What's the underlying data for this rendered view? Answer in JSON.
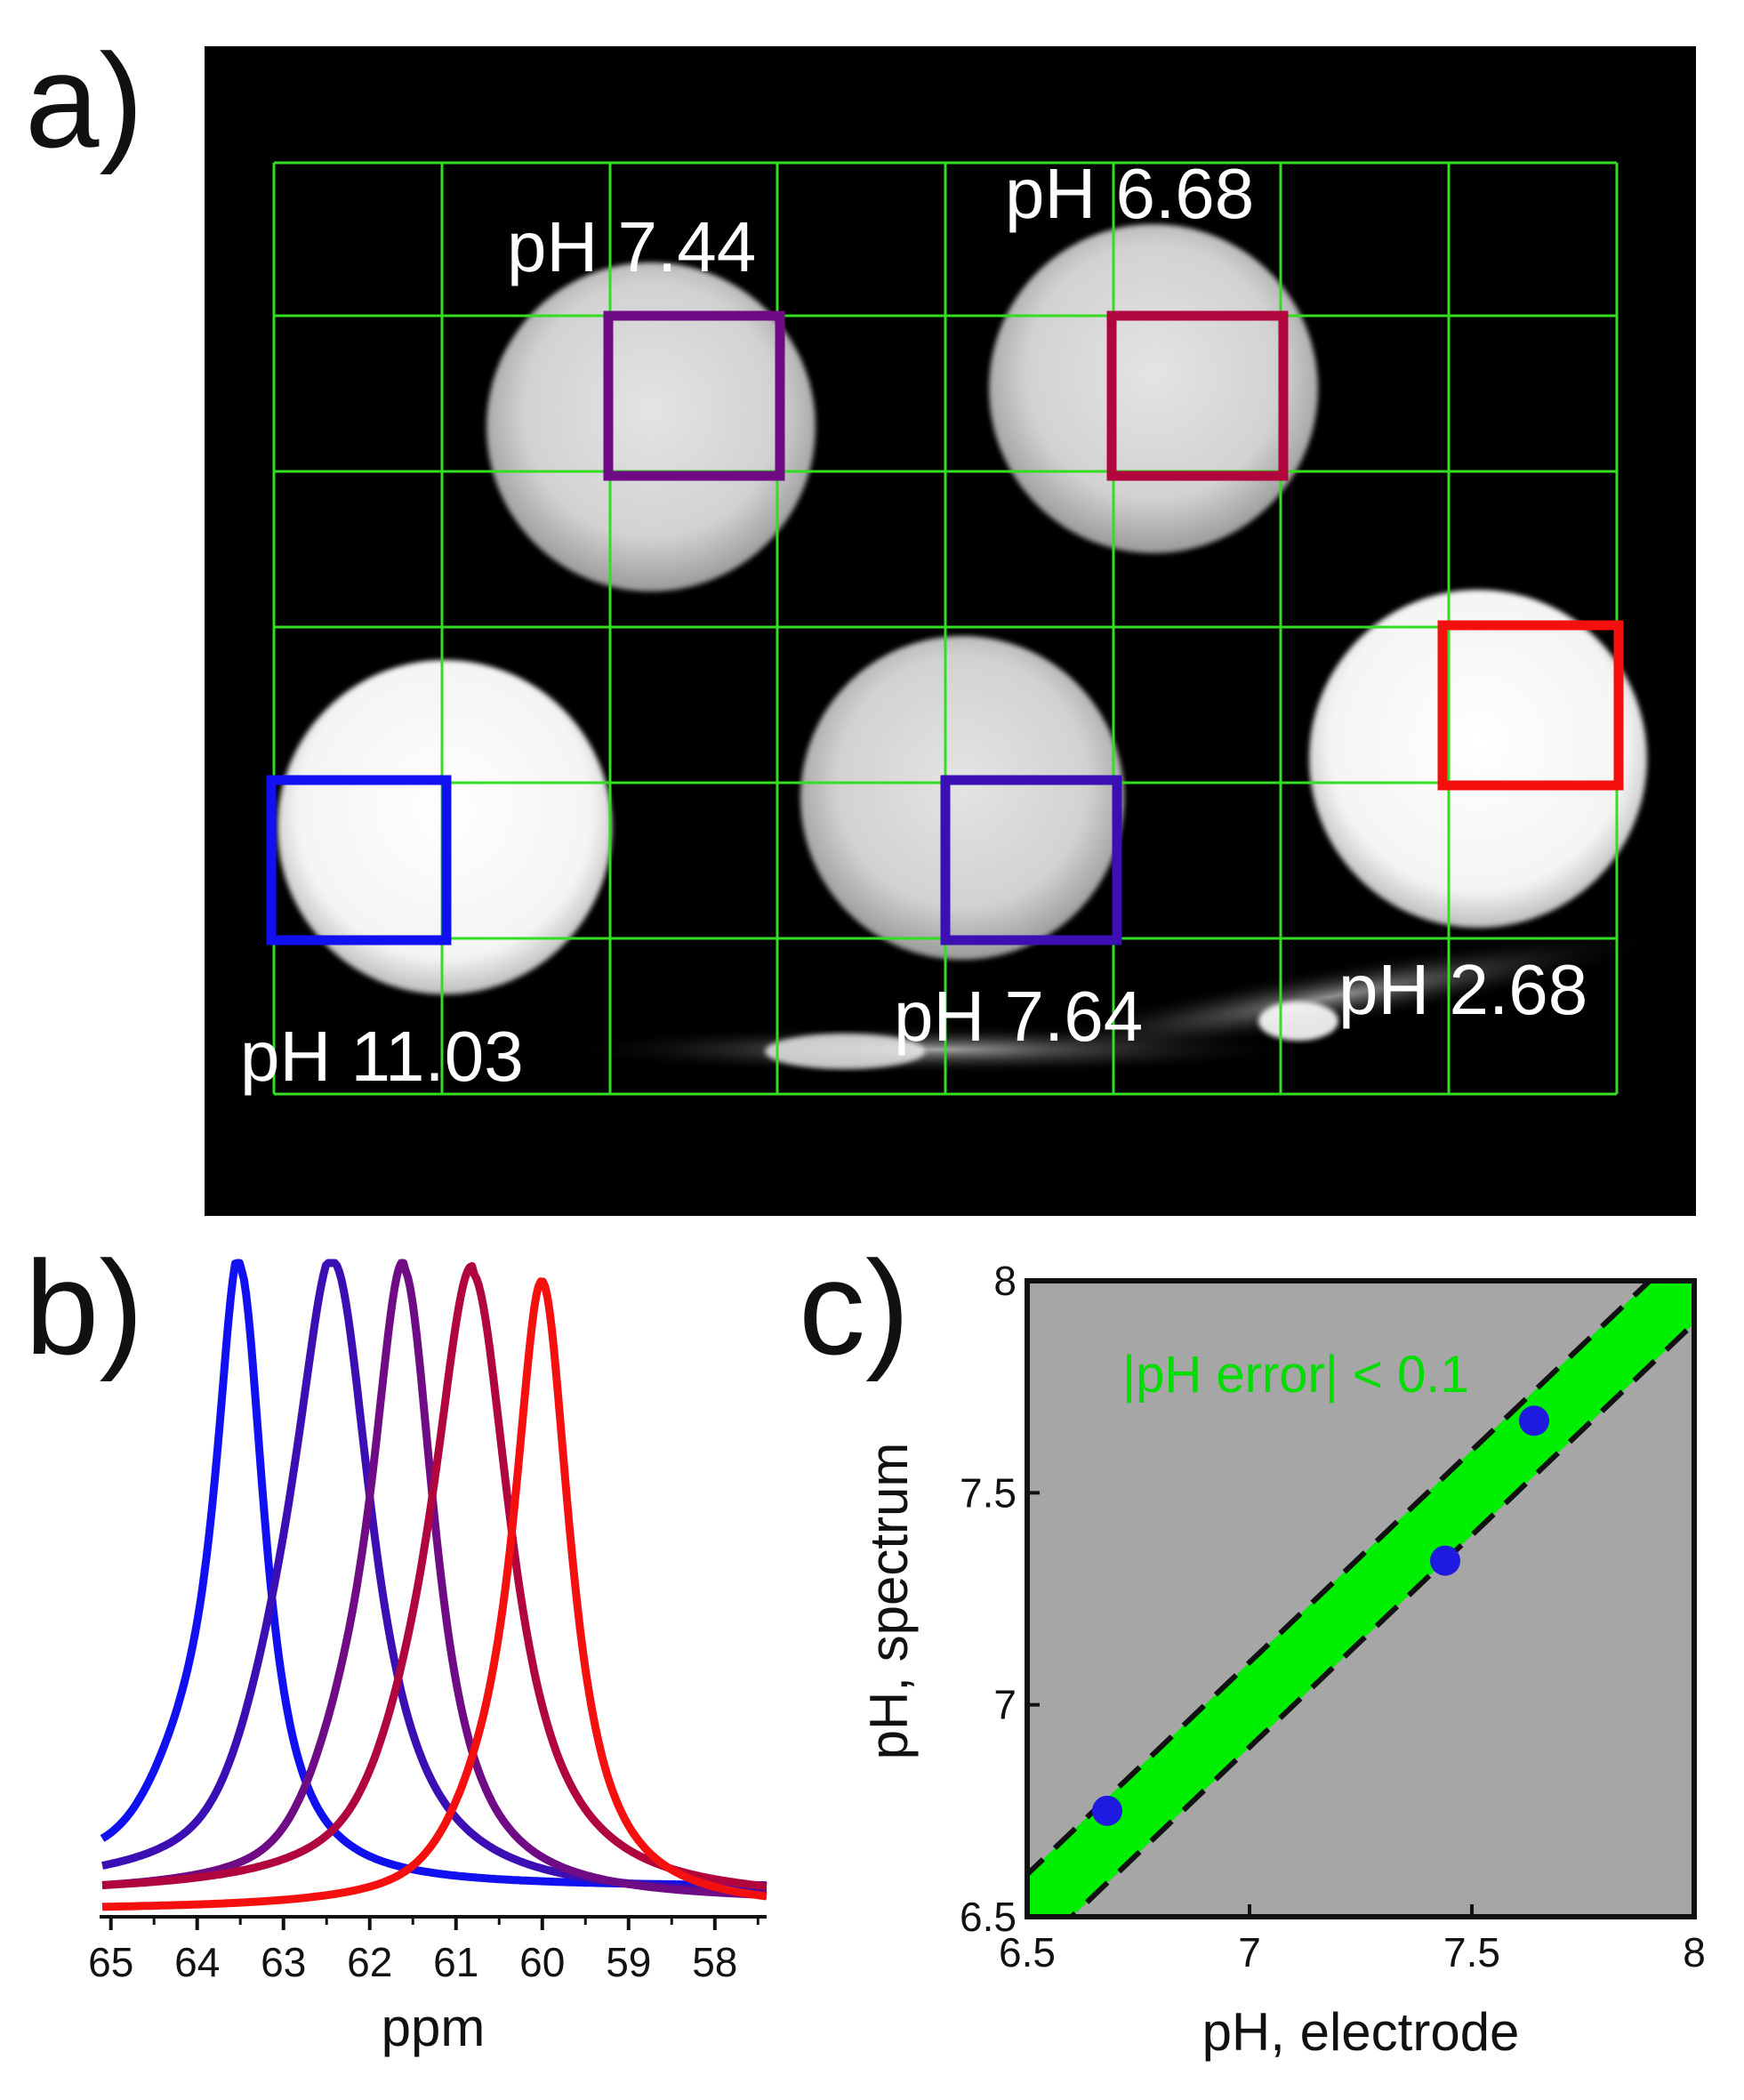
{
  "colors": {
    "grid": "#33dd22",
    "image_bg": "#000000",
    "plot_bg": "#a6a6a6",
    "band": "#00ee00",
    "band_text": "#00dd00",
    "point": "#1f1ae0",
    "ph_11_03": "#1010f0",
    "ph_7_64": "#3b0fb3",
    "ph_7_44": "#6e0b85",
    "ph_6_68": "#b0063d",
    "ph_2_68": "#f51010"
  },
  "panels": {
    "a": "a)",
    "b": "b)",
    "c": "c)"
  },
  "image_panel": {
    "labels": [
      "pH 7.44",
      "pH 6.68",
      "pH 11.03",
      "pH 7.64",
      "pH 2.68"
    ]
  },
  "chart_data": [
    {
      "type": "line",
      "panel": "b",
      "xlabel": "ppm",
      "ylabel": "",
      "x_ticks": [
        65,
        64,
        63,
        62,
        61,
        60,
        59,
        58
      ],
      "xlim": [
        65.1,
        57.4
      ],
      "ylim": [
        0,
        1
      ],
      "x_reversed": true,
      "grid": false,
      "legend": "none",
      "series": [
        {
          "color_key": "ph_11_03",
          "center": 63.5,
          "width": 0.35,
          "baseline": 0.08,
          "shoulder": 0.08
        },
        {
          "color_key": "ph_7_64",
          "center": 62.4,
          "width": 0.55,
          "baseline": 0.04,
          "shoulder": 0.12
        },
        {
          "color_key": "ph_7_44",
          "center": 61.6,
          "width": 0.45,
          "baseline": 0.03,
          "shoulder": 0.1
        },
        {
          "color_key": "ph_6_68",
          "center": 60.8,
          "width": 0.55,
          "baseline": 0.03,
          "shoulder": 0.08
        },
        {
          "color_key": "ph_2_68",
          "center": 60.0,
          "width": 0.4,
          "baseline": 0.0,
          "shoulder": 0.06
        }
      ]
    },
    {
      "type": "scatter",
      "panel": "c",
      "xlabel": "pH, electrode",
      "ylabel": "pH, spectrum",
      "xlim": [
        6.5,
        8
      ],
      "ylim": [
        6.5,
        8
      ],
      "x_ticks": [
        "6.5",
        "7",
        "7.5",
        "8"
      ],
      "y_ticks": [
        "6.5",
        "7",
        "7.5",
        "8"
      ],
      "grid": false,
      "band": {
        "half_width": 0.1,
        "label": "|pH error| < 0.1"
      },
      "points": [
        {
          "x": 6.68,
          "y": 6.75
        },
        {
          "x": 7.44,
          "y": 7.34
        },
        {
          "x": 7.64,
          "y": 7.67
        }
      ]
    }
  ]
}
